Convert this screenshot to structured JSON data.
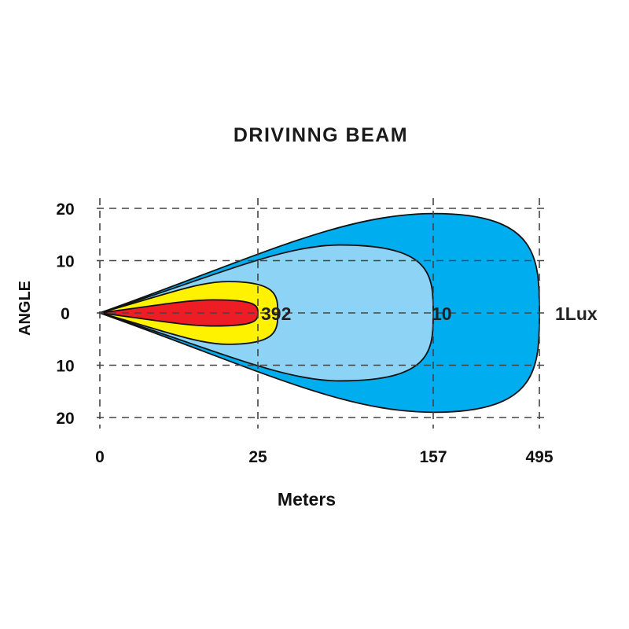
{
  "chart_data": {
    "type": "area",
    "title": "DRIVINNG  BEAM",
    "xlabel": "Meters",
    "ylabel": "ANGLE",
    "x_ticks": [
      "0",
      "25",
      "157",
      "495"
    ],
    "y_ticks": [
      {
        "label": "20",
        "value": 20
      },
      {
        "label": "10",
        "value": 10
      },
      {
        "label": "0",
        "value": 0
      },
      {
        "label": "10",
        "value": -10
      },
      {
        "label": "20",
        "value": -20
      }
    ],
    "grid": true,
    "series": [
      {
        "name": "1Lux",
        "label": "1Lux",
        "color": "#00aeef",
        "reach": 495,
        "max_angle": 19
      },
      {
        "name": "10",
        "label": "10",
        "color": "#8dd3f5",
        "reach": 157,
        "max_angle": 13
      },
      {
        "name": "392",
        "label": "392",
        "color": "#fff200",
        "reach": 40,
        "max_angle": 6
      },
      {
        "name": "",
        "label": "",
        "color": "#ee1c25",
        "reach": 25,
        "max_angle": 2.5
      }
    ]
  }
}
